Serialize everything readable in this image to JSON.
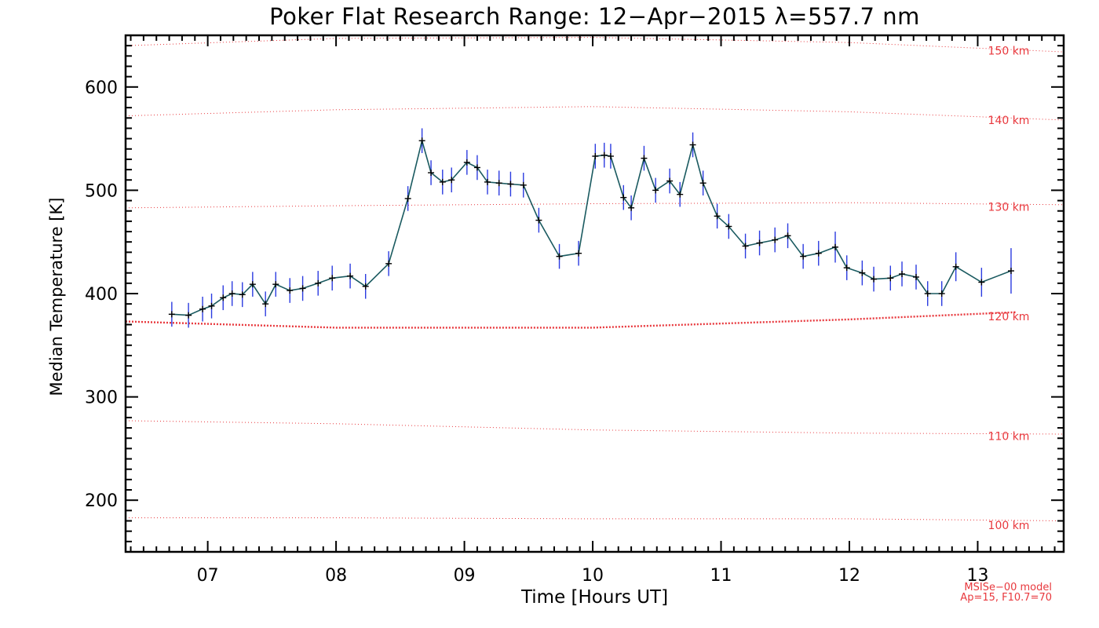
{
  "chart_data": {
    "type": "line",
    "title": "Poker Flat Research Range: 12−Apr−2015 λ=557.7 nm",
    "xlabel": "Time [Hours UT]",
    "ylabel": "Median Temperature [K]",
    "xlim": [
      6.36,
      13.67
    ],
    "ylim": [
      150,
      650
    ],
    "x_ticks": [
      7,
      8,
      9,
      10,
      11,
      12,
      13
    ],
    "x_tick_labels": [
      "07",
      "08",
      "09",
      "10",
      "11",
      "12",
      "13"
    ],
    "y_ticks": [
      200,
      300,
      400,
      500,
      600
    ],
    "y_tick_labels": [
      "200",
      "300",
      "400",
      "500",
      "600"
    ],
    "grid": false,
    "colors": {
      "series": "#1a5a60",
      "error_bars": "#2b3be0",
      "markers": "#000000",
      "model": "#e8383d"
    },
    "series": [
      {
        "name": "",
        "x": [
          6.72,
          6.85,
          6.96,
          7.03,
          7.12,
          7.19,
          7.27,
          7.35,
          7.45,
          7.53,
          7.64,
          7.74,
          7.86,
          7.97,
          8.11,
          8.23,
          8.41,
          8.56,
          8.67,
          8.74,
          8.83,
          8.9,
          9.02,
          9.1,
          9.18,
          9.27,
          9.36,
          9.46,
          9.58,
          9.74,
          9.89,
          10.02,
          10.09,
          10.14,
          10.24,
          10.3,
          10.4,
          10.49,
          10.6,
          10.68,
          10.78,
          10.86,
          10.97,
          11.06,
          11.19,
          11.3,
          11.42,
          11.52,
          11.64,
          11.76,
          11.89,
          11.98,
          12.1,
          12.19,
          12.32,
          12.41,
          12.52,
          12.61,
          12.72,
          12.83,
          13.03,
          13.26
        ],
        "y": [
          380,
          379,
          385,
          388,
          396,
          400,
          399,
          409,
          390,
          409,
          403,
          405,
          410,
          415,
          417,
          407,
          429,
          492,
          548,
          517,
          508,
          510,
          527,
          522,
          508,
          507,
          506,
          505,
          471,
          436,
          439,
          533,
          534,
          533,
          493,
          483,
          531,
          500,
          509,
          496,
          544,
          507,
          475,
          465,
          446,
          449,
          452,
          456,
          436,
          439,
          445,
          425,
          420,
          414,
          415,
          419,
          416,
          400,
          400,
          426,
          411,
          422
        ],
        "error": [
          12,
          12,
          12,
          12,
          12,
          12,
          12,
          12,
          12,
          12,
          12,
          12,
          12,
          12,
          12,
          12,
          12,
          12,
          12,
          12,
          12,
          12,
          12,
          12,
          12,
          12,
          12,
          12,
          12,
          12,
          12,
          12,
          12,
          12,
          12,
          12,
          12,
          12,
          12,
          12,
          12,
          12,
          12,
          12,
          12,
          12,
          12,
          12,
          12,
          12,
          15,
          12,
          12,
          12,
          12,
          12,
          12,
          12,
          12,
          14,
          14,
          22
        ]
      }
    ],
    "model_curves": [
      {
        "label": "150 km",
        "x": [
          6.36,
          8.0,
          10.0,
          12.0,
          13.67
        ],
        "y": [
          640,
          647,
          648,
          643,
          634
        ]
      },
      {
        "label": "140 km",
        "x": [
          6.36,
          8.0,
          10.0,
          12.0,
          13.67
        ],
        "y": [
          572,
          578,
          581,
          576,
          568
        ]
      },
      {
        "label": "130 km",
        "x": [
          6.36,
          8.0,
          10.0,
          12.0,
          13.67
        ],
        "y": [
          483,
          485,
          487,
          488,
          486
        ]
      },
      {
        "label": "120 km",
        "x": [
          6.36,
          8.0,
          10.0,
          12.0,
          13.3
        ],
        "y": [
          373,
          367,
          367,
          375,
          382
        ],
        "emphasis": true
      },
      {
        "label": "110 km",
        "x": [
          6.36,
          8.0,
          10.0,
          12.0,
          13.67
        ],
        "y": [
          277,
          274,
          268,
          265,
          264
        ]
      },
      {
        "label": "100 km",
        "x": [
          6.36,
          8.0,
          10.0,
          12.0,
          13.67
        ],
        "y": [
          183,
          183,
          182,
          182,
          180
        ]
      }
    ],
    "model_label_values": [
      635,
      568,
      484,
      378,
      262,
      176
    ]
  },
  "model_note": {
    "line1": "MSISe−00 model",
    "line2": "Ap=15, F10.7=70"
  }
}
